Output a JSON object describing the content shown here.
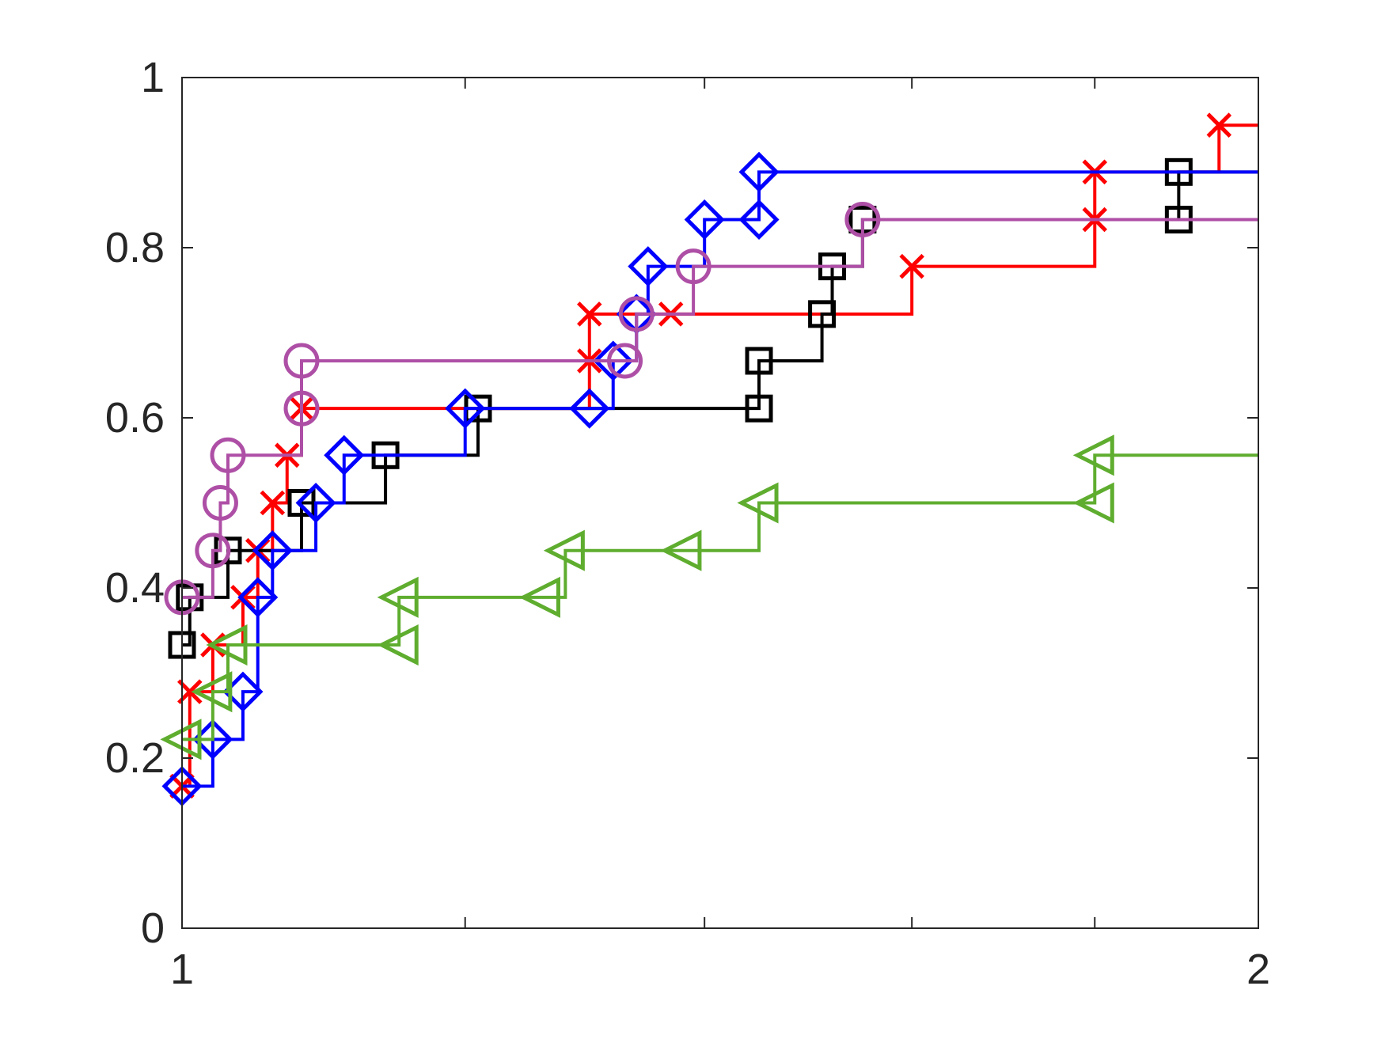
{
  "chart_data": {
    "type": "line",
    "step": true,
    "title": "",
    "xlabel": "",
    "ylabel": "",
    "xlim": [
      1,
      2
    ],
    "ylim": [
      0,
      1
    ],
    "xscale": "log",
    "xticks": [
      1,
      1.2,
      1.4,
      1.6,
      1.8,
      2
    ],
    "xtick_labels": [
      "1",
      "",
      "",
      "",
      "",
      "2"
    ],
    "yticks": [
      0,
      0.2,
      0.4,
      0.6,
      0.8,
      1
    ],
    "ytick_labels": [
      "0",
      "0.2",
      "0.4",
      "0.6",
      "0.8",
      "1"
    ],
    "grid": false,
    "legend": null,
    "series": [
      {
        "color": "#ff0000",
        "marker": "x",
        "points": [
          [
            1.0,
            0.167
          ],
          [
            1.005,
            0.278
          ],
          [
            1.02,
            0.333
          ],
          [
            1.04,
            0.389
          ],
          [
            1.05,
            0.444
          ],
          [
            1.06,
            0.5
          ],
          [
            1.07,
            0.556
          ],
          [
            1.08,
            0.611
          ],
          [
            1.3,
            0.667
          ],
          [
            1.3,
            0.722
          ],
          [
            1.37,
            0.722
          ],
          [
            1.6,
            0.778
          ],
          [
            1.8,
            0.833
          ],
          [
            1.8,
            0.889
          ],
          [
            1.95,
            0.944
          ],
          [
            2.05,
            0.944
          ]
        ]
      },
      {
        "color": "#000000",
        "marker": "square",
        "points": [
          [
            1.0,
            0.333
          ],
          [
            1.005,
            0.389
          ],
          [
            1.03,
            0.444
          ],
          [
            1.08,
            0.5
          ],
          [
            1.14,
            0.556
          ],
          [
            1.21,
            0.611
          ],
          [
            1.45,
            0.611
          ],
          [
            1.45,
            0.667
          ],
          [
            1.51,
            0.722
          ],
          [
            1.52,
            0.778
          ],
          [
            1.55,
            0.833
          ],
          [
            1.9,
            0.833
          ],
          [
            1.9,
            0.889
          ],
          [
            2.05,
            0.889
          ]
        ]
      },
      {
        "color": "#0000ff",
        "marker": "diamond",
        "points": [
          [
            1.0,
            0.167
          ],
          [
            1.02,
            0.222
          ],
          [
            1.04,
            0.278
          ],
          [
            1.05,
            0.389
          ],
          [
            1.06,
            0.444
          ],
          [
            1.09,
            0.5
          ],
          [
            1.11,
            0.556
          ],
          [
            1.2,
            0.611
          ],
          [
            1.3,
            0.611
          ],
          [
            1.32,
            0.667
          ],
          [
            1.34,
            0.722
          ],
          [
            1.35,
            0.778
          ],
          [
            1.4,
            0.833
          ],
          [
            1.45,
            0.833
          ],
          [
            1.45,
            0.889
          ],
          [
            2.05,
            0.889
          ]
        ]
      },
      {
        "color": "#ae4fa6",
        "marker": "circle",
        "points": [
          [
            1.0,
            0.389
          ],
          [
            1.02,
            0.444
          ],
          [
            1.025,
            0.5
          ],
          [
            1.03,
            0.556
          ],
          [
            1.08,
            0.611
          ],
          [
            1.08,
            0.667
          ],
          [
            1.33,
            0.667
          ],
          [
            1.34,
            0.722
          ],
          [
            1.39,
            0.778
          ],
          [
            1.55,
            0.833
          ],
          [
            2.05,
            0.833
          ]
        ]
      },
      {
        "color": "#5fad2f",
        "marker": "triangle-left",
        "points": [
          [
            1.0,
            0.222
          ],
          [
            1.02,
            0.278
          ],
          [
            1.03,
            0.333
          ],
          [
            1.15,
            0.333
          ],
          [
            1.15,
            0.389
          ],
          [
            1.26,
            0.389
          ],
          [
            1.28,
            0.444
          ],
          [
            1.38,
            0.444
          ],
          [
            1.45,
            0.5
          ],
          [
            1.8,
            0.5
          ],
          [
            1.8,
            0.556
          ],
          [
            2.05,
            0.556
          ]
        ]
      }
    ]
  }
}
